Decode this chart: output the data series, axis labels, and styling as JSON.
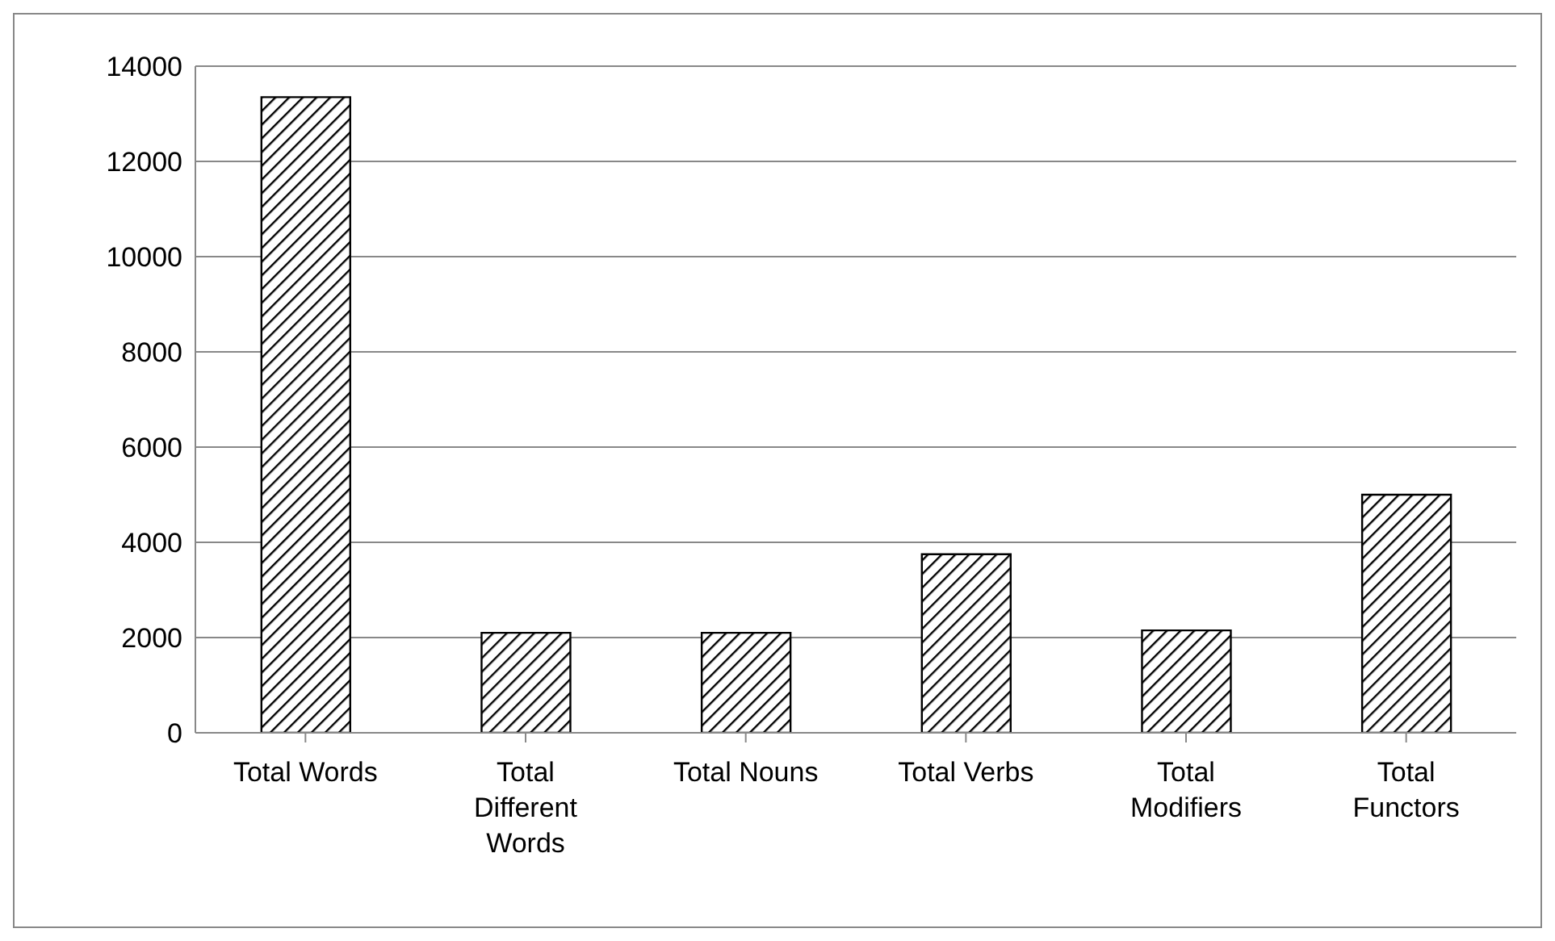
{
  "chart_data": {
    "type": "bar",
    "categories": [
      "Total Words",
      "Total Different Words",
      "Total Nouns",
      "Total Verbs",
      "Total Modifiers",
      "Total Functors"
    ],
    "values": [
      13350,
      2100,
      2100,
      3750,
      2150,
      5000
    ],
    "color": "#000000",
    "ylim": [
      0,
      14000
    ],
    "yticks": [
      0,
      2000,
      4000,
      6000,
      8000,
      10000,
      12000,
      14000
    ],
    "grid": "y",
    "legend": false
  }
}
